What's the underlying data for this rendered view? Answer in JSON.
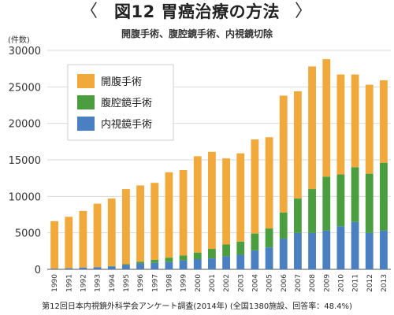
{
  "header": {
    "bracket_left": "〈",
    "bracket_right": "〉",
    "title": "図12 胃癌治療の方法",
    "subtitle": "開腹手術、腹腔鏡手術、内視鏡切除"
  },
  "unit_label": "(件数)",
  "footnote": "第12回日本内視鏡外科学会アンケート調査(2014年) (全国1380施設、回答率：48.4%)",
  "colors": {
    "open": "#F2A93B",
    "laparoscopic": "#4A9E3F",
    "endoscopic": "#4A7FC1",
    "grid": "#d9d9d9",
    "legend_bg": "#ffffff"
  },
  "chart_data": {
    "type": "bar",
    "stacked": true,
    "title": "",
    "xlabel": "",
    "ylabel": "(件数)",
    "ylim": [
      0,
      30000
    ],
    "yticks": [
      0,
      5000,
      10000,
      15000,
      20000,
      25000,
      30000
    ],
    "ytick_labels": [
      "0",
      "5000",
      "10000",
      "15000",
      "20000",
      "25000",
      "30000"
    ],
    "grid": true,
    "legend_position": "top-left",
    "categories": [
      "1990",
      "1991",
      "1992",
      "1993",
      "1994",
      "1995",
      "1996",
      "1997",
      "1998",
      "1999",
      "2000",
      "2001",
      "2002",
      "2003",
      "2004",
      "2005",
      "2006",
      "2007",
      "2008",
      "2009",
      "2010",
      "2011",
      "2012",
      "2013"
    ],
    "legend_order": [
      "open",
      "laparoscopic",
      "endoscopic"
    ],
    "series": [
      {
        "key": "endoscopic",
        "name": "内視鏡手術",
        "values": [
          100,
          150,
          250,
          300,
          400,
          600,
          800,
          900,
          1000,
          1200,
          1400,
          1500,
          1800,
          2000,
          2600,
          3000,
          4200,
          5000,
          5000,
          5300,
          5900,
          6500,
          5000,
          5300
        ]
      },
      {
        "key": "laparoscopic",
        "name": "腹腔鏡手術",
        "values": [
          0,
          0,
          0,
          0,
          50,
          100,
          250,
          400,
          600,
          700,
          900,
          1300,
          1600,
          1800,
          2300,
          2600,
          3600,
          4700,
          6000,
          7400,
          7100,
          7500,
          8100,
          9300
        ]
      },
      {
        "key": "open",
        "name": "開腹手術",
        "values": [
          6500,
          7050,
          7750,
          8700,
          9250,
          10300,
          10450,
          10550,
          11700,
          11700,
          13200,
          13300,
          11800,
          12100,
          12900,
          12500,
          16000,
          14700,
          16800,
          16100,
          13700,
          12700,
          12200,
          11300
        ]
      }
    ]
  }
}
